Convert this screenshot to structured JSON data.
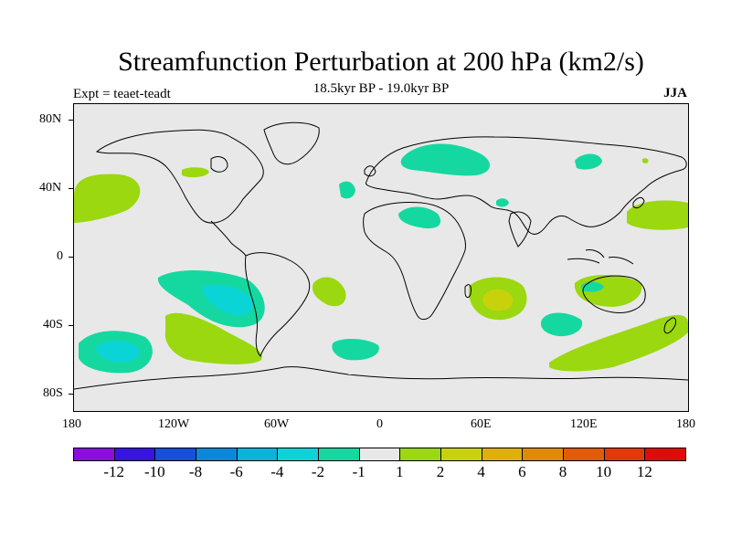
{
  "title": "Streamfunction Perturbation at 200 hPa (km2/s)",
  "subtitle": "18.5kyr BP - 19.0kyr BP",
  "left_label": "Expt = teaet-teadt",
  "right_label": "JJA",
  "lat_labels": [
    "80N",
    "40N",
    "0",
    "40S",
    "80S"
  ],
  "lon_labels": [
    "180",
    "120W",
    "60W",
    "0",
    "60E",
    "120E",
    "180"
  ],
  "colorbar": {
    "labels": [
      "-12",
      "-10",
      "-8",
      "-6",
      "-4",
      "-2",
      "-1",
      "1",
      "2",
      "4",
      "6",
      "8",
      "10",
      "12"
    ],
    "colors": [
      "#8a0fdc",
      "#3714e0",
      "#1650d6",
      "#0d87d8",
      "#0db2d8",
      "#0ad4d6",
      "#15d8a0",
      "#e8e8e8",
      "#9bd80f",
      "#c8d20a",
      "#dfb00a",
      "#e08a0a",
      "#e05c0a",
      "#e03a0a",
      "#e00a0a"
    ]
  },
  "fill_colors": {
    "neg1": "#15d8a0",
    "neg2": "#0ad4d6",
    "pos1": "#9bd80f",
    "pos2": "#c8d20a",
    "background": "#e8e8e8"
  }
}
